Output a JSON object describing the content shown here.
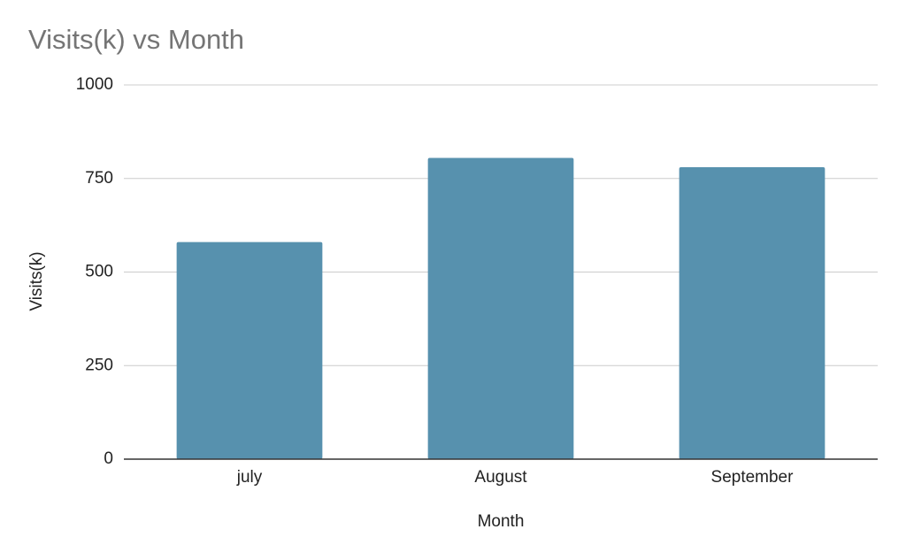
{
  "chart_data": {
    "type": "bar",
    "title": "Visits(k) vs Month",
    "x_label": "Month",
    "y_label": "Visits(k)",
    "categories": [
      "july",
      "August",
      "September"
    ],
    "values": [
      580,
      805,
      780
    ],
    "color": "#5791ae",
    "ylim": [
      0,
      1000
    ],
    "yticks": [
      0,
      250,
      500,
      750,
      1000
    ],
    "grid": true
  }
}
